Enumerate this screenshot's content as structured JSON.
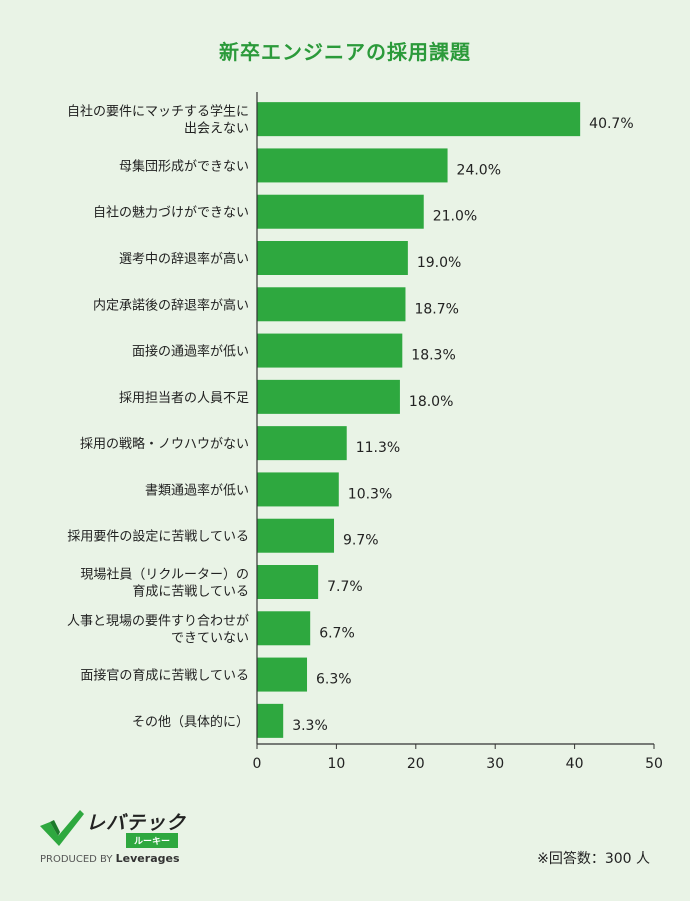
{
  "title": "新卒エンジニアの採用課題",
  "chart_data": {
    "type": "bar",
    "orientation": "horizontal",
    "title": "新卒エンジニアの採用課題",
    "categories": [
      [
        "自社の要件にマッチする学生に",
        "出会えない"
      ],
      [
        "母集団形成ができない"
      ],
      [
        "自社の魅力づけができない"
      ],
      [
        "選考中の辞退率が高い"
      ],
      [
        "内定承諾後の辞退率が高い"
      ],
      [
        "面接の通過率が低い"
      ],
      [
        "採用担当者の人員不足"
      ],
      [
        "採用の戦略・ノウハウがない"
      ],
      [
        "書類通過率が低い"
      ],
      [
        "採用要件の設定に苦戦している"
      ],
      [
        "現場社員（リクルーター）の",
        "育成に苦戦している"
      ],
      [
        "人事と現場の要件すり合わせが",
        "できていない"
      ],
      [
        "面接官の育成に苦戦している"
      ],
      [
        "その他（具体的に）"
      ]
    ],
    "values": [
      40.7,
      24.0,
      21.0,
      19.0,
      18.7,
      18.3,
      18.0,
      11.3,
      10.3,
      9.7,
      7.7,
      6.7,
      6.3,
      3.3
    ],
    "value_labels": [
      "40.7%",
      "24.0%",
      "21.0%",
      "19.0%",
      "18.7%",
      "18.3%",
      "18.0%",
      "11.3%",
      "10.3%",
      "9.7%",
      "7.7%",
      "6.7%",
      "6.3%",
      "3.3%"
    ],
    "x_ticks": [
      "0",
      "10",
      "20",
      "30",
      "40",
      "50"
    ],
    "xlim": [
      0,
      50
    ],
    "xlabel": "",
    "ylabel": "",
    "grid": false,
    "bar_color": "#2ea83f"
  },
  "logo": {
    "name": "レバテック",
    "sub": "ルーキー",
    "produced_by": "PRODUCED BY",
    "brand": "Leverages"
  },
  "note": "※回答数：300 人",
  "colors": {
    "background": "#e9f3e6",
    "title": "#2b9a3a",
    "bar": "#2ea83f"
  }
}
